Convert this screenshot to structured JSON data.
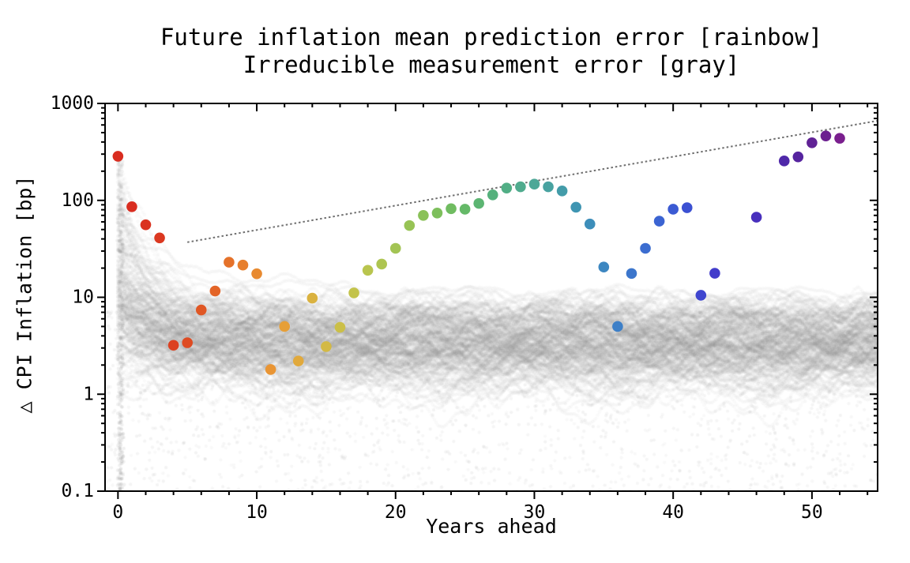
{
  "figure": {
    "title_line1": "Future inflation mean prediction error [rainbow]",
    "title_line2": "Irreducible measurement error [gray]",
    "xlabel": "Years ahead",
    "ylabel": "△ CPI Inflation [bp]"
  },
  "chart_data": {
    "type": "scatter",
    "title": "Future inflation mean prediction error [rainbow]",
    "subtitle": "Irreducible measurement error [gray]",
    "xlabel": "Years ahead",
    "ylabel": "Δ CPI Inflation [bp]",
    "x_scale": "linear",
    "y_scale": "log",
    "xlim": [
      -0.93,
      54.73
    ],
    "ylim": [
      0.1,
      1000
    ],
    "grid": false,
    "legend": "none (encoded in title: rainbow = prediction error, gray = measurement error)",
    "x_ticks": {
      "values": [
        0,
        10,
        20,
        30,
        40,
        50
      ],
      "labels": [
        "0",
        "10",
        "20",
        "30",
        "40",
        "50"
      ],
      "minor_step": 2
    },
    "y_ticks": {
      "major_values": [
        1000,
        100,
        10,
        1,
        0.1
      ],
      "major_labels": [
        "1000",
        "100",
        "10",
        "1",
        "0.1"
      ],
      "minor": "log decades 2-9"
    },
    "series": [
      {
        "name": "Future inflation mean prediction error",
        "type": "scatter",
        "marker": "filled-circle",
        "marker_radius_px": 6.8,
        "points_format": [
          "year",
          "bp",
          "color"
        ],
        "note": "no visible points at years 44, 45 and 47",
        "points": [
          [
            0,
            285,
            "#d92d20"
          ],
          [
            1,
            86,
            "#d92d20"
          ],
          [
            2,
            56,
            "#da321f"
          ],
          [
            3,
            41,
            "#db3820"
          ],
          [
            4,
            3.2,
            "#dc4121"
          ],
          [
            5,
            3.4,
            "#de4b22"
          ],
          [
            6,
            7.4,
            "#e05724"
          ],
          [
            7,
            11.6,
            "#e36427"
          ],
          [
            8,
            23,
            "#e5722a"
          ],
          [
            9,
            21.5,
            "#e77f2d"
          ],
          [
            10,
            17.5,
            "#e88a30"
          ],
          [
            11,
            1.8,
            "#e99534"
          ],
          [
            12,
            5.0,
            "#e69f38"
          ],
          [
            13,
            2.2,
            "#e1a93c"
          ],
          [
            14,
            9.8,
            "#dab240"
          ],
          [
            15,
            3.1,
            "#d3b944"
          ],
          [
            16,
            4.9,
            "#cbbf48"
          ],
          [
            17,
            11.1,
            "#c3c34b"
          ],
          [
            18,
            19,
            "#b9c54e"
          ],
          [
            19,
            22,
            "#aec551"
          ],
          [
            20,
            32,
            "#a3c454"
          ],
          [
            21,
            55,
            "#97c355"
          ],
          [
            22,
            70,
            "#8ac158"
          ],
          [
            23,
            74,
            "#7dbf5c"
          ],
          [
            24,
            82,
            "#70bc61"
          ],
          [
            25,
            81,
            "#65b968"
          ],
          [
            26,
            93,
            "#5cb572"
          ],
          [
            27,
            114,
            "#55b17c"
          ],
          [
            28,
            134,
            "#51ae85"
          ],
          [
            29,
            138,
            "#50ab8e"
          ],
          [
            30,
            147,
            "#4da797"
          ],
          [
            31,
            138,
            "#48a2a0"
          ],
          [
            32,
            125,
            "#439ca9"
          ],
          [
            33,
            85,
            "#3f95b2"
          ],
          [
            34,
            57,
            "#3d8eba"
          ],
          [
            35,
            20.5,
            "#3d87c1"
          ],
          [
            36,
            5.0,
            "#3d7fc7"
          ],
          [
            37,
            17.6,
            "#3c76cc"
          ],
          [
            38,
            32,
            "#3c6dd0"
          ],
          [
            39,
            61,
            "#3b64d2"
          ],
          [
            40,
            81,
            "#3b5ad3"
          ],
          [
            41,
            84,
            "#3b50d2"
          ],
          [
            42,
            10.5,
            "#3f46cf"
          ],
          [
            43,
            17.7,
            "#423ccb"
          ],
          [
            46,
            67,
            "#482fbd"
          ],
          [
            48,
            255,
            "#4f28a9"
          ],
          [
            49,
            281,
            "#56249f"
          ],
          [
            50,
            393,
            "#602295"
          ],
          [
            51,
            462,
            "#6c2090"
          ],
          [
            52,
            437,
            "#7a1f8e"
          ]
        ]
      },
      {
        "name": "Reference growth line",
        "type": "line",
        "style": "dotted",
        "color": "#707070",
        "points_format": [
          "year",
          "bp"
        ],
        "points": [
          [
            5.0,
            37
          ],
          [
            54.73,
            663
          ]
        ]
      },
      {
        "name": "Irreducible measurement error ensemble",
        "type": "cloud",
        "color": "#828282",
        "params": {
          "seed": 11,
          "n_trajectories": 175,
          "step_years": 0.12,
          "dot_radius": 2.3,
          "dot_alpha": 0.045,
          "band_log10_mean": 0.55,
          "band_log10_sd": 0.24,
          "band_log10_max": 0.85,
          "start_log10_max": 2.42,
          "decay_tau_max": 3.5,
          "top_strand_log10": 1.06,
          "n_scatter": 2800,
          "scatter_alpha": 0.1,
          "n_column": 300,
          "x_end": 54.73
        }
      }
    ]
  }
}
